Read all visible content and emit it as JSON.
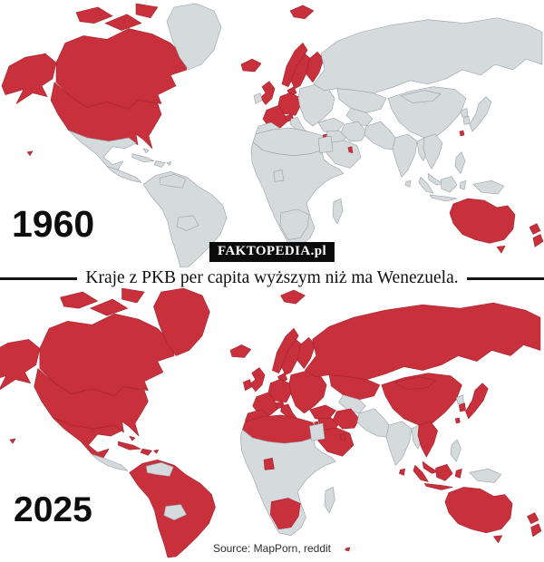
{
  "watermark": {
    "text": "FAKTOPEDIA.pl",
    "background": "#0b0b0b",
    "text_color": "#ffffff"
  },
  "divider": {
    "text": "Kraje z PKB per capita wyższym niż ma Wenezuela.",
    "line_color": "#141414"
  },
  "source": {
    "text": "Source: MapPorn, reddit"
  },
  "map_colors": {
    "highlight": "#C8303B",
    "highlight_border": "#A2242F",
    "land": "#D5DADD",
    "land_border": "#98A1A6",
    "ocean": "#ffffff"
  },
  "maps": [
    {
      "label": "1960",
      "highlighted_regions": [
        "alaska",
        "canada",
        "canada-arctic-1",
        "canada-arctic-2",
        "canada-arctic-3",
        "usa",
        "hawaii",
        "iceland",
        "svalbard",
        "uk",
        "norway",
        "sweden",
        "finland",
        "denmark",
        "germany-benelux",
        "france",
        "switzerland",
        "israel",
        "gulf-states",
        "east-asia-territory",
        "australia",
        "new-zealand"
      ]
    },
    {
      "label": "2025",
      "highlighted_regions": [
        "alaska",
        "canada",
        "canada-arctic-1",
        "canada-arctic-2",
        "canada-arctic-3",
        "greenland",
        "usa",
        "hawaii",
        "mexico",
        "cuba",
        "hispaniola",
        "bahamas",
        "puerto-rico",
        "south-america",
        "iceland",
        "svalbard",
        "uk",
        "ireland",
        "norway",
        "sweden",
        "finland",
        "denmark",
        "germany-benelux",
        "france",
        "switzerland",
        "iberia",
        "italy",
        "eastern-europe",
        "russia",
        "kazakhstan",
        "turkey",
        "levant-iraq",
        "israel",
        "arabia",
        "gulf-states",
        "iran",
        "africa-north",
        "gabon",
        "southern-africa",
        "china",
        "mongolia",
        "se-asia",
        "malaysia",
        "sumatra",
        "java",
        "borneo",
        "sulawesi",
        "south-korea",
        "japan",
        "sri-lanka",
        "east-asia-territory",
        "australia",
        "new-zealand",
        "stray-islet"
      ]
    }
  ]
}
